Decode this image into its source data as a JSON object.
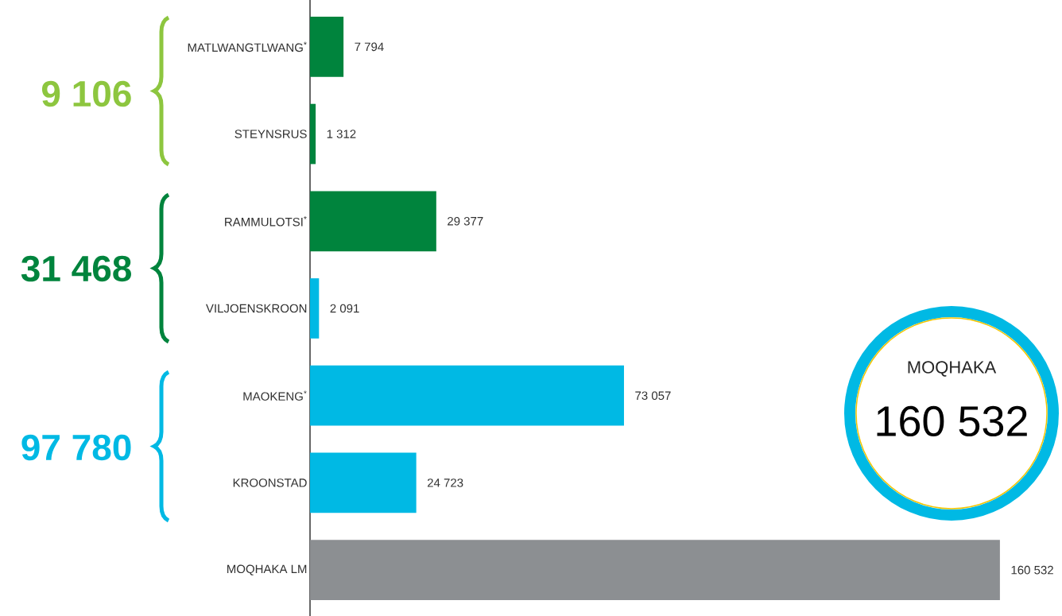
{
  "chart_data": {
    "type": "bar",
    "orientation": "horizontal",
    "categories": [
      "MATLWANGTLWANG$^{*}$",
      "STEYNSRUS",
      "RAMMULOTSI$^{*}$",
      "VILJOENSKROON",
      "MAOKENG$^{*}$",
      "KROONSTAD",
      "MOQHAKA LM"
    ],
    "values": [
      7794,
      1312,
      29377,
      2091,
      73057,
      24723,
      160532
    ],
    "colors": [
      "#00843d",
      "#00843d",
      "#00843d",
      "#00b9e4",
      "#00b9e4",
      "#00b9e4",
      "#8c8f92"
    ],
    "value_labels": [
      "7 794",
      "1 312",
      "29 377",
      "2 091",
      "73 057",
      "24 723",
      "160 532"
    ],
    "tick_labels": "y",
    "annotations": [
      "9 106",
      "31 468",
      "97 780",
      "MOQHAKA",
      "160 532"
    ]
  }
}
